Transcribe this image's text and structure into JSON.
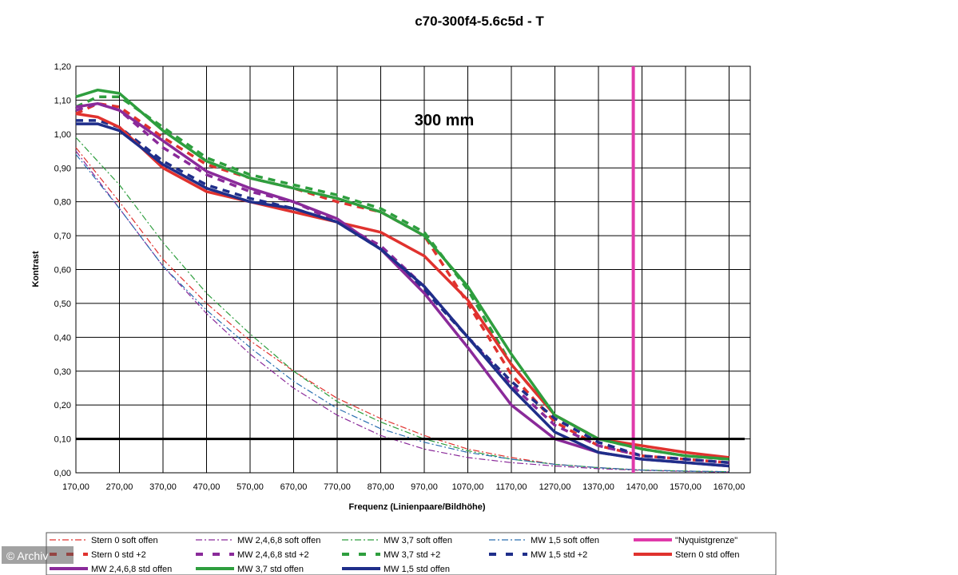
{
  "chart_data": {
    "type": "line",
    "title": "c70-300f4-5.6c5d - T",
    "annotation": "300 mm",
    "xlabel": "Frequenz (Linienpaare/Bildhöhe)",
    "ylabel": "Kontrast",
    "xlim": [
      170,
      1700
    ],
    "ylim": [
      0,
      1.2
    ],
    "x_ticks": [
      "170,00",
      "270,00",
      "370,00",
      "470,00",
      "570,00",
      "670,00",
      "770,00",
      "870,00",
      "970,00",
      "1070,00",
      "1170,00",
      "1270,00",
      "1370,00",
      "1470,00",
      "1570,00",
      "1670,00"
    ],
    "y_ticks": [
      "0,00",
      "0,10",
      "0,20",
      "0,30",
      "0,40",
      "0,50",
      "0,60",
      "0,70",
      "0,80",
      "0,90",
      "1,00",
      "1,10",
      "1,20"
    ],
    "grid": true,
    "legend_position": "bottom",
    "threshold_line": 0.1,
    "nyquist_x": 1450,
    "series": [
      {
        "name": "Stern 0 soft offen",
        "color": "#e0322e",
        "style": "dashdot",
        "x": [
          170,
          270,
          370,
          470,
          570,
          670,
          770,
          870,
          970,
          1070,
          1170,
          1270,
          1370,
          1470,
          1570,
          1670
        ],
        "y": [
          0.96,
          0.8,
          0.63,
          0.5,
          0.39,
          0.3,
          0.22,
          0.16,
          0.11,
          0.07,
          0.045,
          0.025,
          0.015,
          0.008,
          0.005,
          0.003
        ]
      },
      {
        "name": "MW 2,4,6,8 soft offen",
        "color": "#8a2a9a",
        "style": "dashdot",
        "x": [
          170,
          270,
          370,
          470,
          570,
          670,
          770,
          870,
          970,
          1070,
          1170,
          1270,
          1370,
          1470,
          1570,
          1670
        ],
        "y": [
          0.95,
          0.78,
          0.61,
          0.47,
          0.35,
          0.25,
          0.17,
          0.11,
          0.07,
          0.045,
          0.03,
          0.02,
          0.012,
          0.007,
          0.004,
          0.002
        ]
      },
      {
        "name": "MW 3,7 soft offen",
        "color": "#2e9e3e",
        "style": "dashdot",
        "x": [
          170,
          270,
          370,
          470,
          570,
          670,
          770,
          870,
          970,
          1070,
          1170,
          1270,
          1370,
          1470,
          1570,
          1670
        ],
        "y": [
          0.99,
          0.85,
          0.68,
          0.53,
          0.41,
          0.3,
          0.21,
          0.15,
          0.1,
          0.065,
          0.04,
          0.025,
          0.015,
          0.008,
          0.005,
          0.003
        ]
      },
      {
        "name": "MW 1,5 soft offen",
        "color": "#2a6fb0",
        "style": "dashdot",
        "x": [
          170,
          270,
          370,
          470,
          570,
          670,
          770,
          870,
          970,
          1070,
          1170,
          1270,
          1370,
          1470,
          1570,
          1670
        ],
        "y": [
          0.94,
          0.78,
          0.61,
          0.48,
          0.37,
          0.27,
          0.19,
          0.13,
          0.09,
          0.06,
          0.04,
          0.025,
          0.015,
          0.008,
          0.005,
          0.003
        ]
      },
      {
        "name": "\"Nyquistgrenze\"",
        "color": "#e03aaa",
        "style": "vline",
        "x": [
          1450,
          1450
        ],
        "y": [
          0,
          1.2
        ]
      },
      {
        "name": "Stern 0 std +2",
        "color": "#e0322e",
        "style": "dash",
        "x": [
          170,
          220,
          270,
          370,
          470,
          570,
          670,
          770,
          870,
          970,
          1070,
          1170,
          1270,
          1370,
          1470,
          1570,
          1670
        ],
        "y": [
          1.06,
          1.09,
          1.08,
          0.99,
          0.91,
          0.87,
          0.84,
          0.8,
          0.77,
          0.7,
          0.5,
          0.29,
          0.15,
          0.08,
          0.05,
          0.04,
          0.03
        ]
      },
      {
        "name": "MW 2,4,6,8 std +2",
        "color": "#8a2a9a",
        "style": "dash",
        "x": [
          170,
          220,
          270,
          370,
          470,
          570,
          670,
          770,
          870,
          970,
          1070,
          1170,
          1270,
          1370,
          1470,
          1570,
          1670
        ],
        "y": [
          1.07,
          1.09,
          1.07,
          0.96,
          0.88,
          0.83,
          0.8,
          0.74,
          0.67,
          0.55,
          0.4,
          0.26,
          0.14,
          0.08,
          0.05,
          0.04,
          0.03
        ]
      },
      {
        "name": "MW 3,7 std +2",
        "color": "#2e9e3e",
        "style": "dash",
        "x": [
          170,
          220,
          270,
          370,
          470,
          570,
          670,
          770,
          870,
          970,
          1070,
          1170,
          1270,
          1370,
          1470,
          1570,
          1670
        ],
        "y": [
          1.08,
          1.11,
          1.11,
          1.02,
          0.93,
          0.88,
          0.85,
          0.82,
          0.78,
          0.71,
          0.54,
          0.32,
          0.17,
          0.1,
          0.07,
          0.05,
          0.04
        ]
      },
      {
        "name": "MW 1,5 std +2",
        "color": "#1f2e8a",
        "style": "dash",
        "x": [
          170,
          220,
          270,
          370,
          470,
          570,
          670,
          770,
          870,
          970,
          1070,
          1170,
          1270,
          1370,
          1470,
          1570,
          1670
        ],
        "y": [
          1.04,
          1.04,
          1.02,
          0.92,
          0.85,
          0.81,
          0.78,
          0.74,
          0.66,
          0.54,
          0.4,
          0.27,
          0.16,
          0.09,
          0.05,
          0.04,
          0.03
        ]
      },
      {
        "name": "Stern 0 std offen",
        "color": "#e0322e",
        "style": "solid",
        "x": [
          170,
          220,
          270,
          370,
          470,
          570,
          670,
          770,
          870,
          970,
          1070,
          1170,
          1270,
          1370,
          1470,
          1570,
          1670
        ],
        "y": [
          1.06,
          1.05,
          1.02,
          0.9,
          0.83,
          0.8,
          0.77,
          0.74,
          0.71,
          0.64,
          0.51,
          0.32,
          0.17,
          0.1,
          0.08,
          0.06,
          0.045
        ]
      },
      {
        "name": "MW 2,4,6,8 std offen",
        "color": "#8a2a9a",
        "style": "solid",
        "x": [
          170,
          220,
          270,
          370,
          470,
          570,
          670,
          770,
          870,
          970,
          1070,
          1170,
          1270,
          1370,
          1470,
          1570,
          1670
        ],
        "y": [
          1.08,
          1.09,
          1.07,
          0.98,
          0.89,
          0.84,
          0.8,
          0.75,
          0.66,
          0.53,
          0.37,
          0.2,
          0.1,
          0.06,
          0.04,
          0.03,
          0.02
        ]
      },
      {
        "name": "MW 3,7 std offen",
        "color": "#2e9e3e",
        "style": "solid",
        "x": [
          170,
          220,
          270,
          370,
          470,
          570,
          670,
          770,
          870,
          970,
          1070,
          1170,
          1270,
          1370,
          1470,
          1570,
          1670
        ],
        "y": [
          1.11,
          1.13,
          1.12,
          1.01,
          0.92,
          0.87,
          0.84,
          0.81,
          0.77,
          0.7,
          0.55,
          0.35,
          0.17,
          0.1,
          0.07,
          0.05,
          0.04
        ]
      },
      {
        "name": "MW 1,5 std offen",
        "color": "#1f2e8a",
        "style": "solid",
        "x": [
          170,
          220,
          270,
          370,
          470,
          570,
          670,
          770,
          870,
          970,
          1070,
          1170,
          1270,
          1370,
          1470,
          1570,
          1670
        ],
        "y": [
          1.03,
          1.03,
          1.01,
          0.91,
          0.84,
          0.8,
          0.78,
          0.74,
          0.66,
          0.55,
          0.4,
          0.25,
          0.12,
          0.06,
          0.04,
          0.03,
          0.02
        ]
      }
    ]
  },
  "watermark": "© Archiv"
}
